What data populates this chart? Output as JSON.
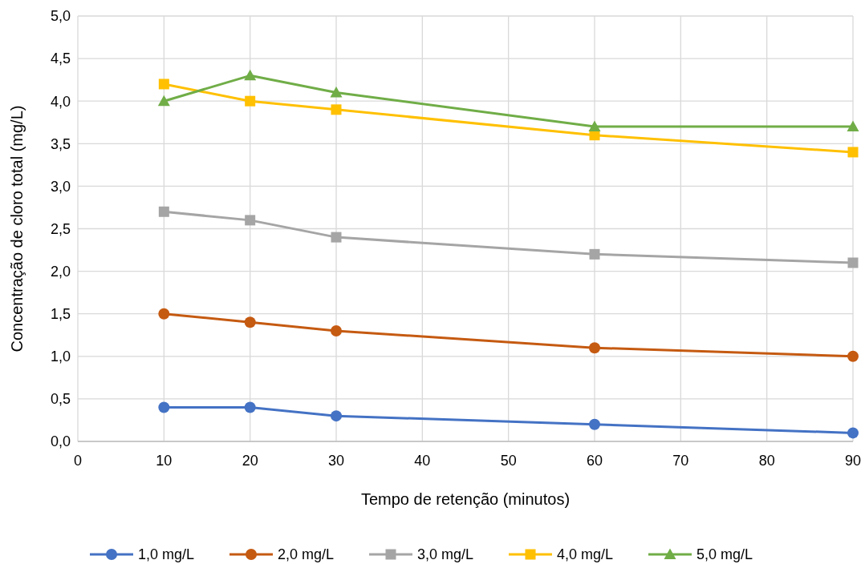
{
  "chart_data": {
    "type": "line",
    "xlabel": "Tempo de retenção (minutos)",
    "ylabel": "Concentração de cloro total (mg/L)",
    "x": [
      10,
      20,
      30,
      60,
      90
    ],
    "xlim": [
      0,
      90
    ],
    "xticks": [
      0,
      10,
      20,
      30,
      40,
      50,
      60,
      70,
      80,
      90
    ],
    "ylim": [
      0,
      5
    ],
    "yticks": [
      {
        "value": 0,
        "label": "0,0"
      },
      {
        "value": 0.5,
        "label": "0,5"
      },
      {
        "value": 1,
        "label": "1,0"
      },
      {
        "value": 1.5,
        "label": "1,5"
      },
      {
        "value": 2,
        "label": "2,0"
      },
      {
        "value": 2.5,
        "label": "2,5"
      },
      {
        "value": 3,
        "label": "3,0"
      },
      {
        "value": 3.5,
        "label": "3,5"
      },
      {
        "value": 4,
        "label": "4,0"
      },
      {
        "value": 4.5,
        "label": "4,5"
      },
      {
        "value": 5,
        "label": "5,0"
      }
    ],
    "grid": true,
    "legend": "bottom",
    "line_style": "solid",
    "series": [
      {
        "name": "1,0 mg/L",
        "color": "#4472c4",
        "marker": "circle",
        "values": [
          0.4,
          0.4,
          0.3,
          0.2,
          0.1
        ]
      },
      {
        "name": "2,0 mg/L",
        "color": "#c55a11",
        "marker": "circle",
        "values": [
          1.5,
          1.4,
          1.3,
          1.1,
          1.0
        ]
      },
      {
        "name": "3,0 mg/L",
        "color": "#a5a5a5",
        "marker": "square",
        "values": [
          2.7,
          2.6,
          2.4,
          2.2,
          2.1
        ]
      },
      {
        "name": "4,0 mg/L",
        "color": "#ffc000",
        "marker": "square",
        "values": [
          4.2,
          4.0,
          3.9,
          3.6,
          3.4
        ]
      },
      {
        "name": "5,0 mg/L",
        "color": "#70ad47",
        "marker": "triangle",
        "values": [
          4.0,
          4.3,
          4.1,
          3.7,
          3.7
        ]
      }
    ]
  }
}
